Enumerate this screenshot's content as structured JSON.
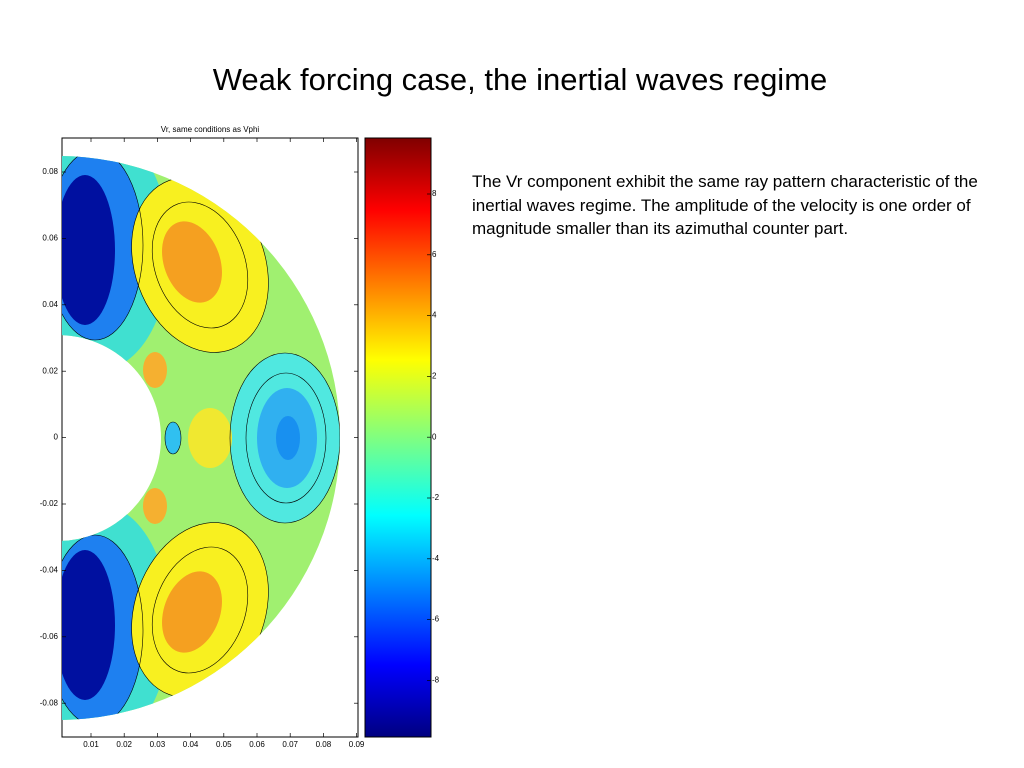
{
  "slide": {
    "title": "Weak forcing case, the inertial waves regime",
    "body": "The Vr component exhibit the same ray pattern characteristic of the inertial waves regime. The amplitude of the velocity is one order of magnitude smaller than its azimuthal counter part."
  },
  "figure": {
    "title": "Vr, same conditions as Vphi",
    "xticks": [
      "0.01",
      "0.02",
      "0.03",
      "0.04",
      "0.05",
      "0.06",
      "0.07",
      "0.08",
      "0.09"
    ],
    "yticks": [
      "0.08",
      "0.06",
      "0.04",
      "0.02",
      "0",
      "-0.02",
      "-0.04",
      "-0.06",
      "-0.08"
    ],
    "colorbar_ticks": [
      "8",
      "6",
      "4",
      "2",
      "0",
      "-2",
      "-4",
      "-6",
      "-8"
    ]
  }
}
